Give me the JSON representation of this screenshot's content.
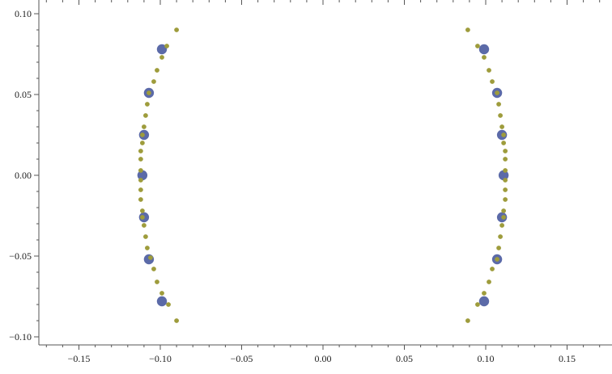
{
  "chart_data": {
    "type": "scatter",
    "title": "",
    "xlabel": "",
    "ylabel": "",
    "xlim": [
      -0.175,
      0.175
    ],
    "ylim": [
      -0.11,
      0.1
    ],
    "x_ticks": [
      -0.15,
      -0.1,
      -0.05,
      0.0,
      0.05,
      0.1,
      0.15
    ],
    "x_tick_labels": [
      "−0.15",
      "−0.10",
      "−0.05",
      "0.00",
      "0.05",
      "0.10",
      "0.15"
    ],
    "y_ticks": [
      -0.1,
      -0.05,
      0.0,
      0.05,
      0.1
    ],
    "y_tick_labels": [
      "−0.10",
      "−0.05",
      "0.00",
      "0.05",
      "0.10"
    ],
    "grid": false,
    "legend": "none",
    "series": [
      {
        "color": "#5b6aa8",
        "marker": "large-circle",
        "points": [
          [
            -0.099,
            0.078
          ],
          [
            -0.107,
            0.051
          ],
          [
            -0.11,
            0.025
          ],
          [
            -0.111,
            0.0
          ],
          [
            -0.11,
            -0.026
          ],
          [
            -0.107,
            -0.052
          ],
          [
            -0.099,
            -0.078
          ],
          [
            0.099,
            0.078
          ],
          [
            0.107,
            0.051
          ],
          [
            0.11,
            0.025
          ],
          [
            0.111,
            0.0
          ],
          [
            0.11,
            -0.026
          ],
          [
            0.107,
            -0.052
          ],
          [
            0.099,
            -0.078
          ]
        ]
      },
      {
        "color": "#9e9c3c",
        "marker": "small-circle",
        "points": [
          [
            -0.09,
            0.09
          ],
          [
            -0.096,
            0.08
          ],
          [
            -0.099,
            0.073
          ],
          [
            -0.102,
            0.065
          ],
          [
            -0.104,
            0.058
          ],
          [
            -0.107,
            0.051
          ],
          [
            -0.108,
            0.044
          ],
          [
            -0.109,
            0.037
          ],
          [
            -0.11,
            0.03
          ],
          [
            -0.111,
            0.025
          ],
          [
            -0.111,
            0.02
          ],
          [
            -0.112,
            0.015
          ],
          [
            -0.112,
            0.01
          ],
          [
            -0.112,
            0.003
          ],
          [
            -0.112,
            -0.003
          ],
          [
            -0.112,
            -0.009
          ],
          [
            -0.112,
            -0.015
          ],
          [
            -0.111,
            -0.022
          ],
          [
            -0.111,
            -0.026
          ],
          [
            -0.11,
            -0.031
          ],
          [
            -0.109,
            -0.038
          ],
          [
            -0.108,
            -0.045
          ],
          [
            -0.106,
            -0.051
          ],
          [
            -0.104,
            -0.058
          ],
          [
            -0.102,
            -0.066
          ],
          [
            -0.099,
            -0.073
          ],
          [
            -0.095,
            -0.08
          ],
          [
            -0.09,
            -0.09
          ],
          [
            0.089,
            0.09
          ],
          [
            0.095,
            0.08
          ],
          [
            0.099,
            0.073
          ],
          [
            0.102,
            0.065
          ],
          [
            0.104,
            0.058
          ],
          [
            0.107,
            0.051
          ],
          [
            0.108,
            0.044
          ],
          [
            0.109,
            0.037
          ],
          [
            0.11,
            0.03
          ],
          [
            0.111,
            0.025
          ],
          [
            0.111,
            0.02
          ],
          [
            0.112,
            0.015
          ],
          [
            0.112,
            0.01
          ],
          [
            0.112,
            0.003
          ],
          [
            0.112,
            -0.003
          ],
          [
            0.112,
            -0.009
          ],
          [
            0.112,
            -0.015
          ],
          [
            0.111,
            -0.022
          ],
          [
            0.111,
            -0.026
          ],
          [
            0.11,
            -0.031
          ],
          [
            0.109,
            -0.038
          ],
          [
            0.108,
            -0.045
          ],
          [
            0.107,
            -0.052
          ],
          [
            0.104,
            -0.058
          ],
          [
            0.102,
            -0.066
          ],
          [
            0.099,
            -0.073
          ],
          [
            0.095,
            -0.08
          ],
          [
            0.089,
            -0.09
          ]
        ]
      }
    ]
  }
}
